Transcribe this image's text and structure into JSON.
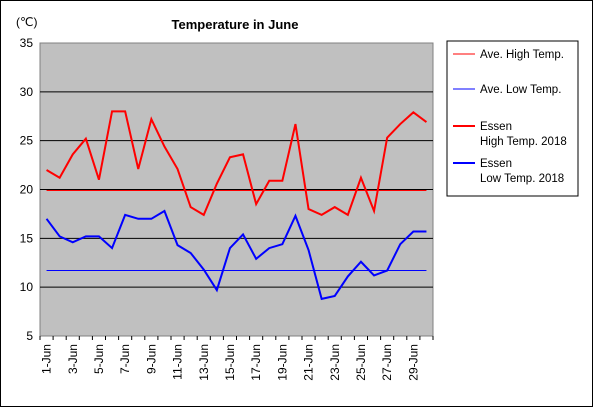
{
  "chart_data": {
    "type": "line",
    "title": "Temperature in June",
    "unit": "(℃)",
    "ylim": [
      5,
      35
    ],
    "yticks": [
      5,
      10,
      15,
      20,
      25,
      30,
      35
    ],
    "grid": true,
    "legend_position": "right",
    "categories": [
      "1-Jun",
      "2-Jun",
      "3-Jun",
      "4-Jun",
      "5-Jun",
      "6-Jun",
      "7-Jun",
      "8-Jun",
      "9-Jun",
      "10-Jun",
      "11-Jun",
      "12-Jun",
      "13-Jun",
      "14-Jun",
      "15-Jun",
      "16-Jun",
      "17-Jun",
      "18-Jun",
      "19-Jun",
      "20-Jun",
      "21-Jun",
      "22-Jun",
      "23-Jun",
      "24-Jun",
      "25-Jun",
      "26-Jun",
      "27-Jun",
      "28-Jun",
      "29-Jun",
      "30-Jun"
    ],
    "xtick_labels": [
      "1-Jun",
      "",
      "3-Jun",
      "",
      "5-Jun",
      "",
      "7-Jun",
      "",
      "9-Jun",
      "",
      "11-Jun",
      "",
      "13-Jun",
      "",
      "15-Jun",
      "",
      "17-Jun",
      "",
      "19-Jun",
      "",
      "21-Jun",
      "",
      "23-Jun",
      "",
      "25-Jun",
      "",
      "27-Jun",
      "",
      "29-Jun",
      ""
    ],
    "series": [
      {
        "name": "Ave. High Temp.",
        "color": "#ff0000",
        "width": 1,
        "values": [
          19.9,
          19.9,
          19.9,
          19.9,
          19.9,
          19.9,
          19.9,
          19.9,
          19.9,
          19.9,
          19.9,
          19.9,
          19.9,
          19.9,
          19.9,
          19.9,
          19.9,
          19.9,
          19.9,
          19.9,
          19.9,
          19.9,
          19.9,
          19.9,
          19.9,
          19.9,
          19.9,
          19.9,
          19.9,
          19.9
        ]
      },
      {
        "name": "Ave. Low Temp.",
        "color": "#0000ff",
        "width": 1,
        "values": [
          11.7,
          11.7,
          11.7,
          11.7,
          11.7,
          11.7,
          11.7,
          11.7,
          11.7,
          11.7,
          11.7,
          11.7,
          11.7,
          11.7,
          11.7,
          11.7,
          11.7,
          11.7,
          11.7,
          11.7,
          11.7,
          11.7,
          11.7,
          11.7,
          11.7,
          11.7,
          11.7,
          11.7,
          11.7,
          11.7
        ]
      },
      {
        "name": "Essen\nHigh Temp. 2018",
        "color": "#ff0000",
        "width": 2,
        "values": [
          22.0,
          21.2,
          23.6,
          25.2,
          21.0,
          28.0,
          28.0,
          22.1,
          27.2,
          24.4,
          22.1,
          18.2,
          17.4,
          20.6,
          23.3,
          23.6,
          18.5,
          20.9,
          20.9,
          26.7,
          18.0,
          17.4,
          18.2,
          17.4,
          21.2,
          17.8,
          25.3,
          26.7,
          27.9,
          26.9
        ]
      },
      {
        "name": "Essen\nLow Temp. 2018",
        "color": "#0000ff",
        "width": 2,
        "values": [
          17.0,
          15.2,
          14.6,
          15.2,
          15.2,
          14.0,
          17.4,
          17.0,
          17.0,
          17.8,
          14.3,
          13.5,
          11.8,
          9.7,
          14.0,
          15.4,
          12.9,
          14.0,
          14.4,
          17.3,
          13.8,
          8.8,
          9.1,
          11.1,
          12.6,
          11.2,
          11.7,
          14.4,
          15.7,
          15.7
        ]
      }
    ]
  }
}
